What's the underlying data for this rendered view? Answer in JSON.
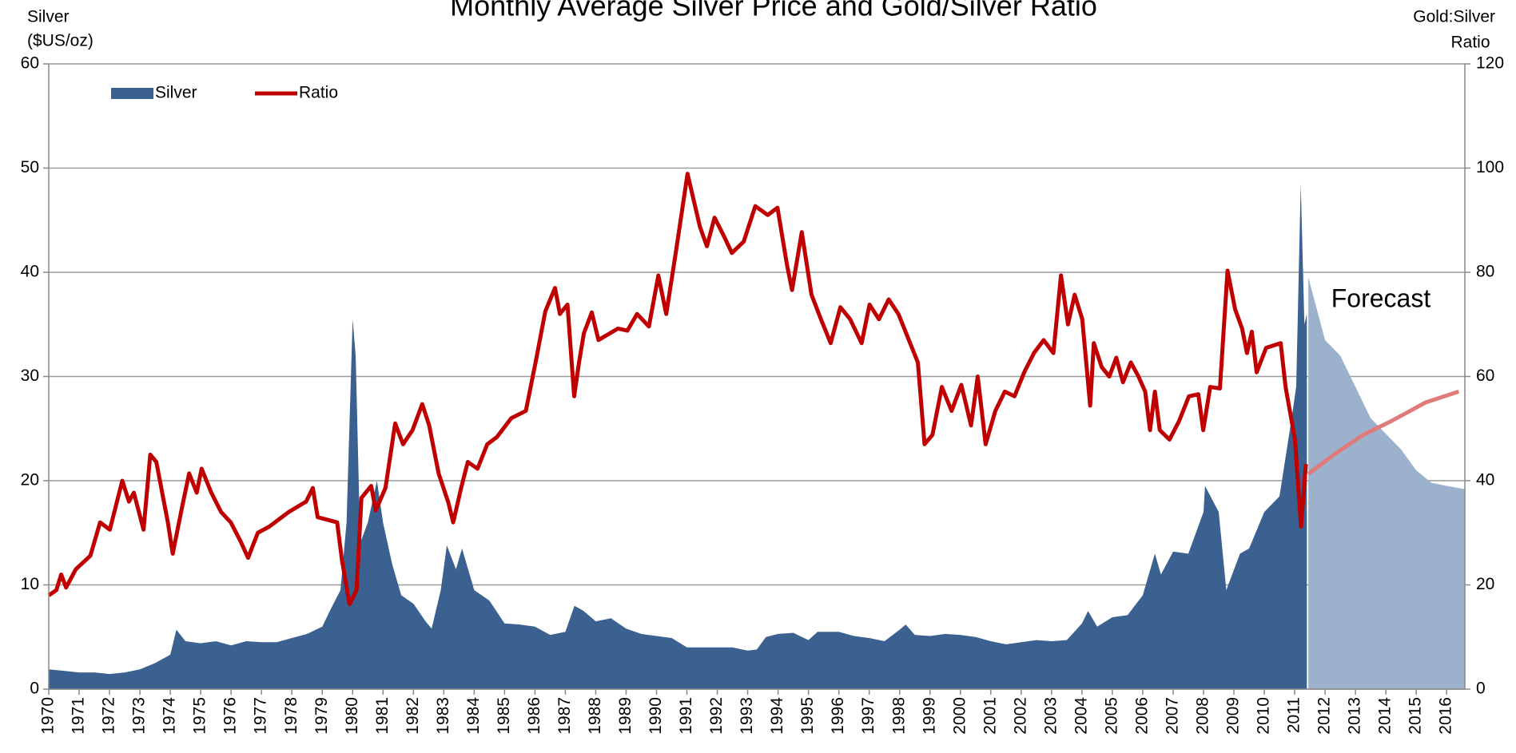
{
  "chart_data": {
    "type": "area",
    "title": "Monthly Average Silver Price and Gold/Silver Ratio",
    "ylabel": [
      "Silver",
      "($US/oz)"
    ],
    "y2label": [
      "Gold:Silver",
      "Ratio"
    ],
    "annotation": "Forecast",
    "forecast_start": 2011.42,
    "legend": "upper left",
    "grid": true,
    "xlim": [
      1970,
      2016.6
    ],
    "xticks": [
      1970,
      1971,
      1972,
      1973,
      1974,
      1975,
      1976,
      1977,
      1978,
      1979,
      1980,
      1981,
      1982,
      1983,
      1984,
      1985,
      1986,
      1987,
      1988,
      1989,
      1990,
      1991,
      1992,
      1993,
      1994,
      1995,
      1996,
      1997,
      1998,
      1999,
      2000,
      2001,
      2002,
      2003,
      2004,
      2005,
      2006,
      2007,
      2008,
      2009,
      2010,
      2011,
      2012,
      2013,
      2014,
      2015,
      2016
    ],
    "ylim": [
      0,
      60
    ],
    "yticks": [
      0,
      10,
      20,
      30,
      40,
      50,
      60
    ],
    "y2lim": [
      0,
      120
    ],
    "y2ticks": [
      0,
      20,
      40,
      60,
      80,
      100,
      120
    ],
    "series": [
      {
        "name": "Silver",
        "type": "area",
        "color": "#3a6190",
        "forecast_color": "#9cb1cb",
        "x": [
          1970,
          1970.5,
          1971,
          1971.5,
          1972,
          1972.5,
          1973,
          1973.5,
          1974,
          1974.2,
          1974.5,
          1975,
          1975.5,
          1976,
          1976.5,
          1977,
          1977.5,
          1978,
          1978.5,
          1979,
          1979.3,
          1979.6,
          1979.8,
          1980,
          1980.1,
          1980.25,
          1980.5,
          1980.8,
          1981,
          1981.3,
          1981.6,
          1982,
          1982.4,
          1982.6,
          1982.9,
          1983.1,
          1983.4,
          1983.6,
          1984,
          1984.5,
          1985,
          1985.5,
          1986,
          1986.5,
          1987,
          1987.3,
          1987.6,
          1988,
          1988.5,
          1989,
          1989.5,
          1990,
          1990.5,
          1991,
          1991.5,
          1992,
          1992.5,
          1993,
          1993.3,
          1993.6,
          1994,
          1994.5,
          1995,
          1995.3,
          1996,
          1996.5,
          1997,
          1997.5,
          1998,
          1998.2,
          1998.5,
          1999,
          1999.5,
          2000,
          2000.5,
          2001,
          2001.5,
          2002,
          2002.5,
          2003,
          2003.5,
          2004,
          2004.2,
          2004.5,
          2005,
          2005.5,
          2006,
          2006.4,
          2006.6,
          2007,
          2007.5,
          2008,
          2008.05,
          2008.5,
          2008.75,
          2009.2,
          2009.5,
          2010,
          2010.5,
          2010.9,
          2011.05,
          2011.2,
          2011.32,
          2011.4,
          2011.45,
          2012,
          2012.5,
          2013,
          2013.5,
          2014,
          2014.5,
          2015,
          2015.5,
          2016,
          2016.6
        ],
        "values": [
          1.9,
          1.75,
          1.6,
          1.6,
          1.45,
          1.6,
          1.9,
          2.5,
          3.3,
          5.7,
          4.6,
          4.4,
          4.6,
          4.2,
          4.6,
          4.5,
          4.5,
          4.9,
          5.3,
          6.0,
          7.8,
          9.5,
          16,
          35.5,
          32,
          14,
          16,
          20,
          16,
          12,
          9,
          8.2,
          6.5,
          5.8,
          9.5,
          13.8,
          11.5,
          13.5,
          9.5,
          8.5,
          6.3,
          6.2,
          6.0,
          5.2,
          5.5,
          8.0,
          7.5,
          6.5,
          6.8,
          5.8,
          5.3,
          5.1,
          4.9,
          4.0,
          4.0,
          4.0,
          4.0,
          3.7,
          3.8,
          5.0,
          5.3,
          5.4,
          4.7,
          5.5,
          5.5,
          5.1,
          4.9,
          4.6,
          5.7,
          6.2,
          5.2,
          5.1,
          5.3,
          5.2,
          5.0,
          4.6,
          4.3,
          4.5,
          4.7,
          4.6,
          4.7,
          6.3,
          7.5,
          6.0,
          6.9,
          7.1,
          9.0,
          13.0,
          11,
          13.2,
          13.0,
          17,
          19.5,
          17,
          9.5,
          13,
          13.5,
          17,
          18.5,
          26,
          29,
          48.5,
          35,
          36,
          39.5,
          33.5,
          32,
          29,
          26,
          24.5,
          23,
          21,
          19.8,
          19.5,
          19.2
        ]
      },
      {
        "name": "Ratio",
        "type": "line",
        "axis": "y2",
        "color": "#c00000",
        "forecast_color": "#e07b7b",
        "x": [
          1970,
          1970.25,
          1970.41,
          1970.57,
          1970.89,
          1971.37,
          1971.69,
          1972.01,
          1972.42,
          1972.64,
          1972.8,
          1973.12,
          1973.34,
          1973.54,
          1973.92,
          1974.08,
          1974.39,
          1974.62,
          1974.87,
          1975.03,
          1975.35,
          1975.67,
          1975.99,
          1976.31,
          1976.56,
          1976.88,
          1977.26,
          1977.9,
          1978.47,
          1978.69,
          1978.85,
          1979.49,
          1979.65,
          1979.9,
          1980.13,
          1980.29,
          1980.61,
          1980.76,
          1981.08,
          1981.4,
          1981.66,
          1981.97,
          1982.29,
          1982.52,
          1982.83,
          1983.15,
          1983.31,
          1983.57,
          1983.79,
          1984.11,
          1984.43,
          1984.75,
          1985.22,
          1985.7,
          1986.02,
          1986.34,
          1986.66,
          1986.82,
          1987.07,
          1987.29,
          1987.45,
          1987.61,
          1987.87,
          1988.09,
          1988.73,
          1989.04,
          1989.36,
          1989.75,
          1990.06,
          1990.32,
          1990.64,
          1991.02,
          1991.43,
          1991.66,
          1991.91,
          1992.23,
          1992.48,
          1992.87,
          1993.25,
          1993.66,
          1993.98,
          1994.3,
          1994.46,
          1994.78,
          1995.1,
          1995.41,
          1995.73,
          1996.05,
          1996.37,
          1996.75,
          1997.01,
          1997.32,
          1997.64,
          1997.96,
          1998.6,
          1998.82,
          1999.08,
          1999.39,
          1999.71,
          2000.03,
          2000.35,
          2000.57,
          2000.83,
          2001.15,
          2001.46,
          2001.78,
          2002.1,
          2002.42,
          2002.74,
          2003.06,
          2003.31,
          2003.54,
          2003.76,
          2004.01,
          2004.27,
          2004.39,
          2004.65,
          2004.9,
          2005.13,
          2005.35,
          2005.61,
          2005.86,
          2006.08,
          2006.24,
          2006.4,
          2006.56,
          2006.88,
          2007.2,
          2007.52,
          2007.83,
          2007.99,
          2008.22,
          2008.54,
          2008.79,
          2009.04,
          2009.27,
          2009.43,
          2009.59,
          2009.75,
          2010.06,
          2010.54,
          2010.7,
          2011.01,
          2011.21,
          2011.37,
          2011.45,
          2012.29,
          2013.25,
          2014.2,
          2015.3,
          2016.4
        ],
        "values": [
          18,
          19,
          22,
          19.5,
          23,
          25.6,
          32,
          30.6,
          40,
          36,
          37.7,
          30.6,
          45,
          43.6,
          32,
          26,
          35,
          41.4,
          37.7,
          42.3,
          37.7,
          34,
          32,
          28.4,
          25.2,
          30,
          31.2,
          34,
          36,
          38.6,
          33,
          32,
          24.7,
          16.3,
          19,
          36.7,
          39,
          34.3,
          38.6,
          51,
          47,
          49.7,
          54.7,
          50.6,
          41.4,
          35.8,
          32,
          38.6,
          43.6,
          42.3,
          47,
          48.4,
          52,
          53.4,
          62.7,
          72.5,
          77,
          72,
          73.8,
          56.2,
          62.7,
          68.3,
          72.3,
          67,
          69.2,
          68.8,
          72,
          69.6,
          79.4,
          72,
          84,
          98.9,
          88.7,
          85,
          90.5,
          86.8,
          83.7,
          85.9,
          92.7,
          91,
          92.4,
          81.2,
          76.6,
          87.7,
          75.7,
          71,
          66.4,
          73.3,
          71,
          66.4,
          73.8,
          71,
          74.8,
          72,
          62.7,
          47,
          48.8,
          58,
          53.4,
          58.4,
          50.6,
          60,
          47,
          53.4,
          57.1,
          56.2,
          60.8,
          64.5,
          67,
          64.5,
          79.4,
          70,
          75.7,
          71,
          54.4,
          66.4,
          61.8,
          60,
          63.6,
          58.9,
          62.7,
          60,
          57.1,
          49.7,
          57.1,
          49.7,
          47.9,
          51.5,
          56.2,
          56.6,
          49.7,
          58,
          57.7,
          80.3,
          72.9,
          69.2,
          64.5,
          68.6,
          60.8,
          65.5,
          66.4,
          58,
          47.9,
          31.2,
          43.2,
          41.3,
          45,
          48.8,
          51.5,
          55,
          57.1
        ]
      }
    ]
  }
}
